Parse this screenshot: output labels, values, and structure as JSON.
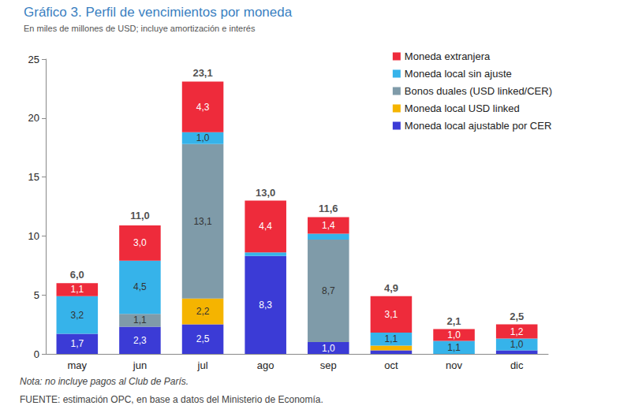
{
  "chart_data": {
    "type": "bar",
    "title": "Gráfico 3. Perfil de vencimientos por moneda",
    "subtitle": "En miles de millones de USD; incluye amortización e interés",
    "notes": [
      "Nota: no incluye pagos al Club de París.",
      "FUENTE: estimación OPC, en base a datos del Ministerio de Economía."
    ],
    "categories": [
      "may",
      "jun",
      "jul",
      "ago",
      "sep",
      "oct",
      "nov",
      "dic"
    ],
    "series": [
      {
        "name": "Moneda local ajustable por CER",
        "color": "#3b3bd6",
        "values": [
          1.7,
          2.3,
          2.5,
          8.3,
          1.0,
          0.3,
          0,
          0.3
        ],
        "value_labels": [
          "1,7",
          "2,3",
          "2,5",
          "8,3",
          "1,0",
          null,
          null,
          null
        ]
      },
      {
        "name": "Moneda local USD linked",
        "color": "#f5b400",
        "values": [
          0,
          0,
          2.2,
          0,
          0,
          0.4,
          0,
          0
        ],
        "value_labels": [
          null,
          null,
          "2,2",
          null,
          null,
          null,
          null,
          null
        ]
      },
      {
        "name": "Bonos duales (USD linked/CER)",
        "color": "#7f9ba9",
        "values": [
          0,
          1.1,
          13.1,
          0,
          8.7,
          0,
          0,
          0
        ],
        "value_labels": [
          null,
          "1,1",
          "13,1",
          null,
          "8,7",
          null,
          null,
          null
        ]
      },
      {
        "name": "Moneda local sin ajuste",
        "color": "#36b3ea",
        "values": [
          3.2,
          4.5,
          1.0,
          0.3,
          0.5,
          1.1,
          1.1,
          1.0
        ],
        "value_labels": [
          "3,2",
          "4,5",
          "1,0",
          null,
          null,
          "1,1",
          "1,1",
          "1,0"
        ]
      },
      {
        "name": "Moneda extranjera",
        "color": "#ee2b3b",
        "values": [
          1.1,
          3.0,
          4.3,
          4.4,
          1.4,
          3.1,
          1.0,
          1.2
        ],
        "value_labels": [
          "1,1",
          "3,0",
          "4,3",
          "4,4",
          "1,4",
          "3,1",
          "1,0",
          "1,2"
        ]
      }
    ],
    "totals": [
      6.0,
      11.0,
      23.1,
      13.0,
      11.6,
      4.9,
      2.1,
      2.5
    ],
    "total_labels": [
      "6,0",
      "11,0",
      "23,1",
      "13,0",
      "11,6",
      "4,9",
      "2,1",
      "2,5"
    ],
    "stacked": true,
    "data_labels": true,
    "legend": "upper right",
    "grid": false,
    "ylim": [
      0,
      25
    ],
    "yticks": [
      0,
      5,
      10,
      15,
      20,
      25
    ]
  }
}
